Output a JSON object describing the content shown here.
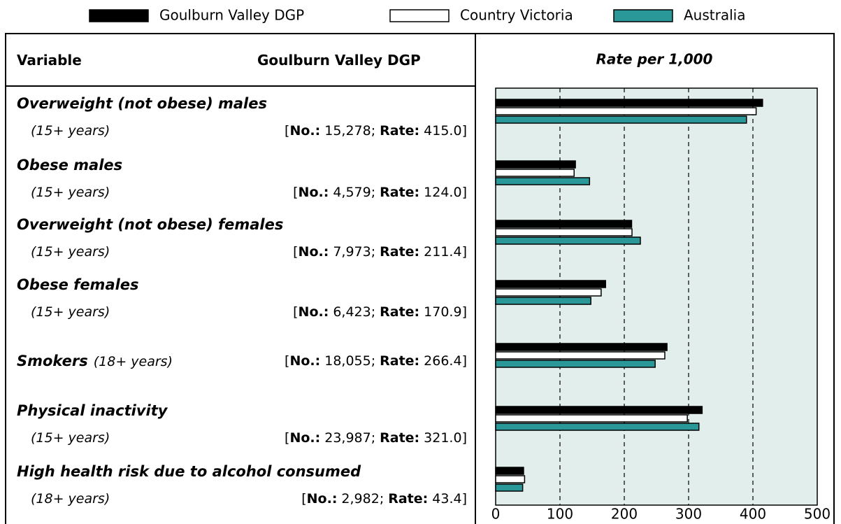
{
  "chart_data": {
    "type": "bar",
    "orientation": "horizontal",
    "title": "Rate per 1,000",
    "categories": [
      "Overweight (not obese) males",
      "Obese males",
      "Overweight (not obese) females",
      "Obese females",
      "Smokers",
      "Physical inactivity",
      "High health risk due to alcohol consumed"
    ],
    "series": [
      {
        "name": "Goulburn Valley DGP",
        "color": "#000000",
        "values": [
          415.0,
          124.0,
          211.4,
          170.9,
          266.4,
          321.0,
          43.4
        ],
        "value_labels": [
          "415.0",
          "124.0",
          "211.4",
          "170.9",
          "266.4",
          "321.0",
          "43.4"
        ]
      },
      {
        "name": "Country Victoria",
        "color": "#ffffff",
        "values": [
          405,
          122,
          212,
          164,
          263,
          298,
          45
        ]
      },
      {
        "name": "Australia",
        "color": "#2a9898",
        "values": [
          390,
          146,
          225,
          148,
          248,
          316,
          42
        ]
      }
    ],
    "xlim": [
      0,
      500
    ],
    "xticks": [
      0,
      100,
      200,
      300,
      400,
      500
    ],
    "grid": true,
    "plot_background": "#e1eeeb"
  },
  "table": {
    "headers": [
      "Variable",
      "Goulburn Valley DGP"
    ],
    "open": "[",
    "no_label": "No.:",
    "separator": ";",
    "rate_label": "Rate:",
    "close": "]",
    "rows": [
      {
        "age": "(15+ years)",
        "no": "15,278"
      },
      {
        "age": "(15+ years)",
        "no": "4,579"
      },
      {
        "age": "(15+ years)",
        "no": "7,973"
      },
      {
        "age": "(15+ years)",
        "no": "6,423"
      },
      {
        "age": "(18+ years)",
        "no": "18,055"
      },
      {
        "age": "(15+ years)",
        "no": "23,987"
      },
      {
        "age": "(18+ years)",
        "no": "2,982"
      }
    ]
  }
}
